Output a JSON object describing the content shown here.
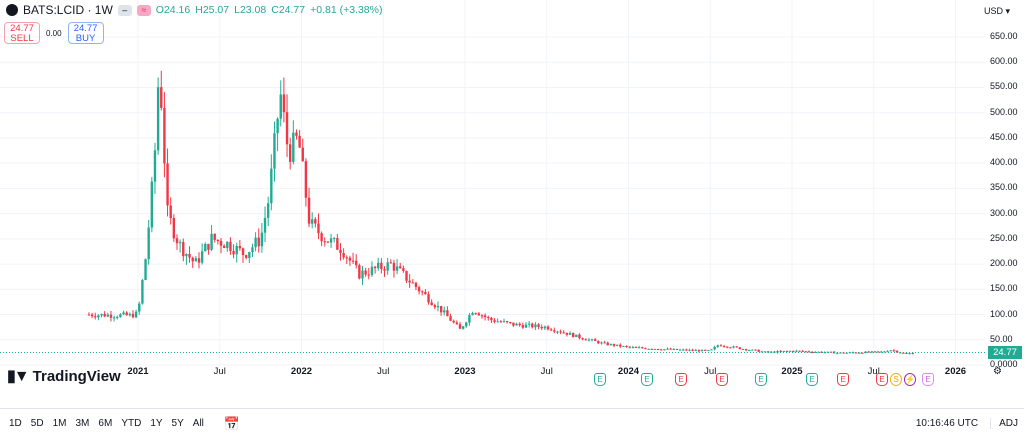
{
  "header": {
    "symbol": "BATS:LCID · 1W",
    "open": "O24.16",
    "high": "H25.07",
    "low": "L23.08",
    "close": "C24.77",
    "change": "+0.81 (+3.38%)",
    "pill1": "–",
    "pill2": "≈"
  },
  "trade": {
    "sell_price": "24.77",
    "sell_label": "SELL",
    "spread": "0.00",
    "buy_price": "24.77",
    "buy_label": "BUY"
  },
  "currency": "USD",
  "colors": {
    "up": "#22ab94",
    "down": "#f23645"
  },
  "logo": "TradingView",
  "last_price_label": "24.77",
  "events": [
    {
      "t": "E",
      "k": "g"
    },
    {
      "t": "E",
      "k": "g"
    },
    {
      "t": "E",
      "k": "r"
    },
    {
      "t": "E",
      "k": "r"
    },
    {
      "t": "E",
      "k": "g"
    },
    {
      "t": "E",
      "k": "g"
    },
    {
      "t": "E",
      "k": "r"
    },
    {
      "t": "E",
      "k": "r"
    },
    {
      "t": "S",
      "k": "s"
    },
    {
      "t": "⚡",
      "k": "d"
    },
    {
      "t": "E",
      "k": "p"
    }
  ],
  "bottom": {
    "ranges": [
      "1D",
      "5D",
      "1M",
      "3M",
      "6M",
      "YTD",
      "1Y",
      "5Y",
      "All"
    ],
    "time": "10:16:46 UTC",
    "adj": "ADJ"
  },
  "chart_data": {
    "type": "candlestick",
    "title": "BATS:LCID · 1W",
    "ylabel": "USD",
    "ylim": [
      0,
      650
    ],
    "y_ticks": [
      "650.00",
      "600.00",
      "550.00",
      "500.00",
      "450.00",
      "400.00",
      "350.00",
      "300.00",
      "250.00",
      "200.00",
      "150.00",
      "100.00",
      "50.00",
      "0.0000"
    ],
    "x_ticks": [
      {
        "label": "2021",
        "bold": true
      },
      {
        "label": "Jul"
      },
      {
        "label": "2022",
        "bold": true
      },
      {
        "label": "Jul"
      },
      {
        "label": "2023",
        "bold": true
      },
      {
        "label": "Jul"
      },
      {
        "label": "2024",
        "bold": true
      },
      {
        "label": "Jul"
      },
      {
        "label": "2025",
        "bold": true
      },
      {
        "label": "Jul"
      },
      {
        "label": "2026",
        "bold": true
      }
    ],
    "approx_close_by_time": [
      [
        2020.7,
        100
      ],
      [
        2020.95,
        98
      ],
      [
        2021.0,
        102
      ],
      [
        2021.05,
        220
      ],
      [
        2021.1,
        400
      ],
      [
        2021.13,
        600
      ],
      [
        2021.18,
        300
      ],
      [
        2021.25,
        240
      ],
      [
        2021.35,
        200
      ],
      [
        2021.45,
        250
      ],
      [
        2021.55,
        240
      ],
      [
        2021.65,
        220
      ],
      [
        2021.75,
        250
      ],
      [
        2021.8,
        330
      ],
      [
        2021.87,
        540
      ],
      [
        2021.92,
        420
      ],
      [
        2021.98,
        450
      ],
      [
        2022.05,
        280
      ],
      [
        2022.15,
        250
      ],
      [
        2022.25,
        230
      ],
      [
        2022.35,
        180
      ],
      [
        2022.45,
        190
      ],
      [
        2022.55,
        200
      ],
      [
        2022.65,
        170
      ],
      [
        2022.75,
        140
      ],
      [
        2022.85,
        110
      ],
      [
        2022.97,
        70
      ],
      [
        2023.05,
        110
      ],
      [
        2023.15,
        90
      ],
      [
        2023.3,
        80
      ],
      [
        2023.5,
        75
      ],
      [
        2023.7,
        55
      ],
      [
        2023.85,
        42
      ],
      [
        2024.0,
        35
      ],
      [
        2024.3,
        30
      ],
      [
        2024.5,
        28
      ],
      [
        2024.55,
        40
      ],
      [
        2024.7,
        32
      ],
      [
        2024.85,
        25
      ],
      [
        2025.0,
        28
      ],
      [
        2025.3,
        24
      ],
      [
        2025.55,
        26
      ],
      [
        2025.6,
        30
      ],
      [
        2025.7,
        22
      ],
      [
        2025.75,
        24.77
      ]
    ]
  }
}
